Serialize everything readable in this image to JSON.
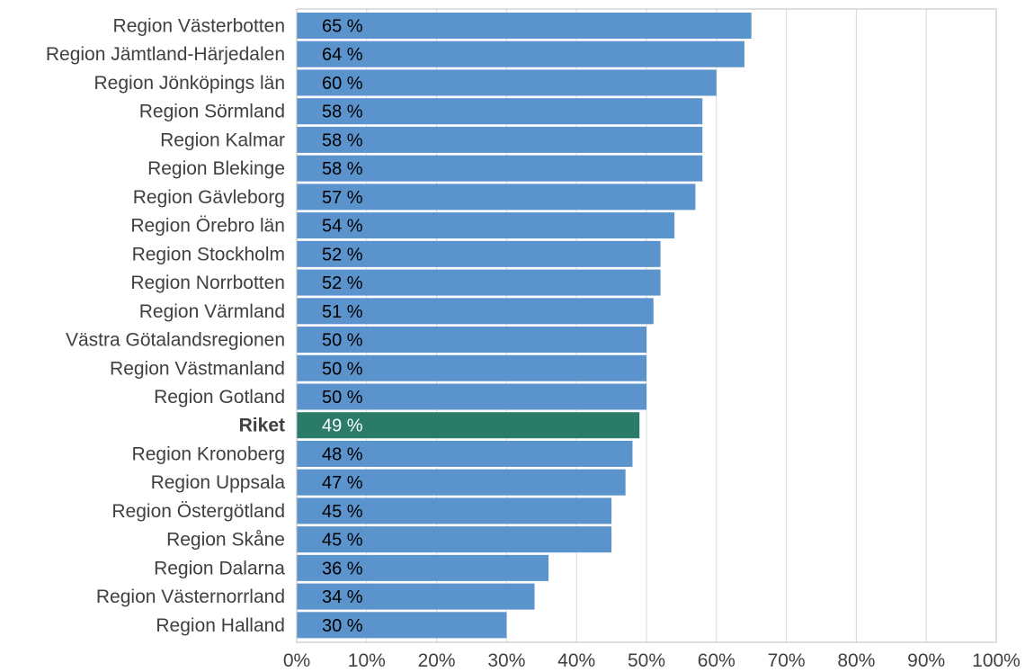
{
  "chart_data": {
    "type": "bar",
    "orientation": "horizontal",
    "categories": [
      "Region Västerbotten",
      "Region Jämtland-Härjedalen",
      "Region Jönköpings län",
      "Region Sörmland",
      "Region Kalmar",
      "Region Blekinge",
      "Region Gävleborg",
      "Region Örebro län",
      "Region Stockholm",
      "Region Norrbotten",
      "Region Värmland",
      "Västra Götalandsregionen",
      "Region Västmanland",
      "Region Gotland",
      "Riket",
      "Region Kronoberg",
      "Region Uppsala",
      "Region Östergötland",
      "Region Skåne",
      "Region Dalarna",
      "Region Västernorrland",
      "Region Halland"
    ],
    "values": [
      65,
      64,
      60,
      58,
      58,
      58,
      57,
      54,
      52,
      52,
      51,
      50,
      50,
      50,
      49,
      48,
      47,
      45,
      45,
      36,
      34,
      30
    ],
    "value_labels": [
      "65 %",
      "64 %",
      "60 %",
      "58 %",
      "58 %",
      "58 %",
      "57 %",
      "54 %",
      "52 %",
      "52 %",
      "51 %",
      "50 %",
      "50 %",
      "50 %",
      "49 %",
      "48 %",
      "47 %",
      "45 %",
      "45 %",
      "36 %",
      "34 %",
      "30 %"
    ],
    "highlight_category": "Riket",
    "xlim": [
      0,
      100
    ],
    "x_ticks": [
      "0%",
      "10%",
      "20%",
      "30%",
      "40%",
      "50%",
      "60%",
      "70%",
      "80%",
      "90%",
      "100%"
    ],
    "grid": "vertical",
    "title": "",
    "xlabel": "",
    "ylabel": "",
    "colors": {
      "bar": "#5b93cd",
      "highlight": "#2a7b68",
      "grid": "#d9d9d9",
      "text": "#404040"
    }
  }
}
